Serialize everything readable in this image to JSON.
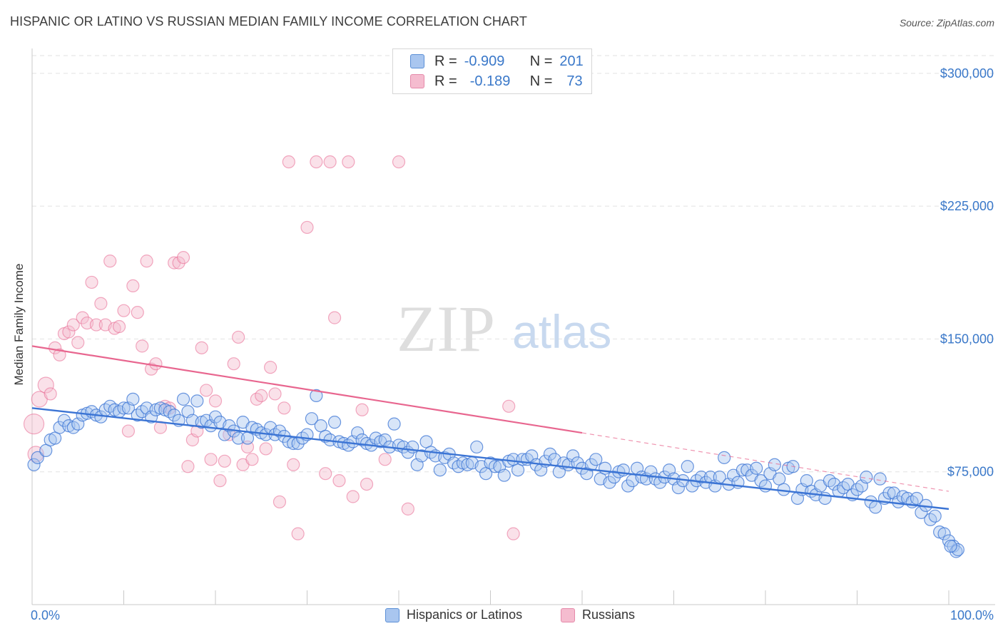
{
  "title": "HISPANIC OR LATINO VS RUSSIAN MEDIAN FAMILY INCOME CORRELATION CHART",
  "source": "Source: ZipAtlas.com",
  "watermark": {
    "zip": "ZIP",
    "atlas": "atlas"
  },
  "legend": {
    "rows": [
      {
        "r_label": "R =",
        "r_value": "-0.909",
        "n_label": "N =",
        "n_value": "201",
        "color": "#a9c6ef",
        "border": "#5b8fd6"
      },
      {
        "r_label": "R =",
        "r_value": "-0.189",
        "n_label": "N =",
        "n_value": "73",
        "color": "#f5bccf",
        "border": "#e58aaa"
      }
    ]
  },
  "bottom_legend": {
    "hispanic": "Hispanics or Latinos",
    "russian": "Russians"
  },
  "chart_data": {
    "type": "scatter",
    "xlabel": "",
    "ylabel": "Median Family Income",
    "xlim": [
      0,
      100
    ],
    "ylim": [
      0,
      310000
    ],
    "x_tick_labels": {
      "left": "0.0%",
      "right": "100.0%"
    },
    "y_ticks": [
      75000,
      150000,
      225000,
      300000
    ],
    "y_tick_labels": [
      "$75,000",
      "$150,000",
      "$225,000",
      "$300,000"
    ],
    "grid": true,
    "colors": {
      "hispanic_fill": "#a9c6ef",
      "hispanic_line": "#3b74d4",
      "russian_fill": "#f5bccf",
      "russian_line": "#e8668f",
      "axis_text": "#3a78c9"
    },
    "series": [
      {
        "name": "Hispanics or Latinos",
        "trend": {
          "x": [
            0,
            100
          ],
          "y": [
            111000,
            54000
          ]
        },
        "points": [
          [
            0.2,
            79000
          ],
          [
            0.6,
            83000
          ],
          [
            1.5,
            87000
          ],
          [
            2,
            93000
          ],
          [
            2.5,
            94000
          ],
          [
            3,
            100000
          ],
          [
            3.5,
            104000
          ],
          [
            4,
            101000
          ],
          [
            4.5,
            100000
          ],
          [
            5,
            102000
          ],
          [
            5.5,
            107000
          ],
          [
            6,
            108000
          ],
          [
            6.5,
            109000
          ],
          [
            7,
            107000
          ],
          [
            7.5,
            106000
          ],
          [
            8,
            110000
          ],
          [
            8.5,
            112000
          ],
          [
            9,
            110000
          ],
          [
            9.5,
            109000
          ],
          [
            10,
            111000
          ],
          [
            10.5,
            111000
          ],
          [
            11,
            116000
          ],
          [
            11.5,
            107000
          ],
          [
            12,
            109000
          ],
          [
            12.5,
            111000
          ],
          [
            13,
            106000
          ],
          [
            13.5,
            110000
          ],
          [
            14,
            111000
          ],
          [
            14.5,
            110000
          ],
          [
            15,
            109000
          ],
          [
            15.5,
            107000
          ],
          [
            16,
            104000
          ],
          [
            16.5,
            116000
          ],
          [
            17,
            109000
          ],
          [
            17.5,
            104000
          ],
          [
            18,
            115000
          ],
          [
            18.5,
            103000
          ],
          [
            19,
            104000
          ],
          [
            19.5,
            101000
          ],
          [
            20,
            106000
          ],
          [
            20.5,
            103000
          ],
          [
            21,
            96000
          ],
          [
            21.5,
            101000
          ],
          [
            22,
            98000
          ],
          [
            22.5,
            94000
          ],
          [
            23,
            103000
          ],
          [
            23.5,
            94000
          ],
          [
            24,
            100000
          ],
          [
            24.5,
            99000
          ],
          [
            25,
            97000
          ],
          [
            25.5,
            96000
          ],
          [
            26,
            100000
          ],
          [
            26.5,
            96000
          ],
          [
            27,
            98000
          ],
          [
            27.5,
            95000
          ],
          [
            28,
            92000
          ],
          [
            28.5,
            91000
          ],
          [
            29,
            91000
          ],
          [
            29.5,
            94000
          ],
          [
            30,
            96000
          ],
          [
            30.5,
            105000
          ],
          [
            31,
            118000
          ],
          [
            31.5,
            101000
          ],
          [
            32,
            95000
          ],
          [
            32.5,
            93000
          ],
          [
            33,
            103000
          ],
          [
            33.5,
            92000
          ],
          [
            34,
            91000
          ],
          [
            34.5,
            90000
          ],
          [
            35,
            92000
          ],
          [
            35.5,
            97000
          ],
          [
            36,
            93000
          ],
          [
            36.5,
            91000
          ],
          [
            37,
            90000
          ],
          [
            37.5,
            94000
          ],
          [
            38,
            92000
          ],
          [
            38.5,
            93000
          ],
          [
            39,
            89000
          ],
          [
            39.5,
            102000
          ],
          [
            40,
            90000
          ],
          [
            40.5,
            89000
          ],
          [
            41,
            86000
          ],
          [
            41.5,
            89000
          ],
          [
            42,
            79000
          ],
          [
            42.5,
            84000
          ],
          [
            43,
            92000
          ],
          [
            43.5,
            86000
          ],
          [
            44,
            84000
          ],
          [
            44.5,
            76000
          ],
          [
            45,
            83000
          ],
          [
            45.5,
            85000
          ],
          [
            46,
            80000
          ],
          [
            46.5,
            78000
          ],
          [
            47,
            80000
          ],
          [
            47.5,
            79000
          ],
          [
            48,
            80000
          ],
          [
            48.5,
            89000
          ],
          [
            49,
            78000
          ],
          [
            49.5,
            74000
          ],
          [
            50,
            80000
          ],
          [
            50.5,
            78000
          ],
          [
            51,
            78000
          ],
          [
            51.5,
            73000
          ],
          [
            52,
            81000
          ],
          [
            52.5,
            82000
          ],
          [
            53,
            76000
          ],
          [
            53.5,
            82000
          ],
          [
            54,
            82000
          ],
          [
            54.5,
            84000
          ],
          [
            55,
            79000
          ],
          [
            55.5,
            76000
          ],
          [
            56,
            81000
          ],
          [
            56.5,
            85000
          ],
          [
            57,
            82000
          ],
          [
            57.5,
            75000
          ],
          [
            58,
            80000
          ],
          [
            58.5,
            79000
          ],
          [
            59,
            84000
          ],
          [
            59.5,
            80000
          ],
          [
            60,
            77000
          ],
          [
            60.5,
            74000
          ],
          [
            61,
            79000
          ],
          [
            61.5,
            82000
          ],
          [
            62,
            71000
          ],
          [
            62.5,
            77000
          ],
          [
            63,
            69000
          ],
          [
            63.5,
            72000
          ],
          [
            64,
            75000
          ],
          [
            64.5,
            76000
          ],
          [
            65,
            67000
          ],
          [
            65.5,
            70000
          ],
          [
            66,
            77000
          ],
          [
            66.5,
            72000
          ],
          [
            67,
            71000
          ],
          [
            67.5,
            75000
          ],
          [
            68,
            71000
          ],
          [
            68.5,
            69000
          ],
          [
            69,
            72000
          ],
          [
            69.5,
            76000
          ],
          [
            70,
            71000
          ],
          [
            70.5,
            66000
          ],
          [
            71,
            70000
          ],
          [
            71.5,
            78000
          ],
          [
            72,
            67000
          ],
          [
            72.5,
            70000
          ],
          [
            73,
            72000
          ],
          [
            73.5,
            69000
          ],
          [
            74,
            72000
          ],
          [
            74.5,
            67000
          ],
          [
            75,
            72000
          ],
          [
            75.5,
            83000
          ],
          [
            76,
            68000
          ],
          [
            76.5,
            73000
          ],
          [
            77,
            69000
          ],
          [
            77.5,
            76000
          ],
          [
            78,
            76000
          ],
          [
            78.5,
            73000
          ],
          [
            79,
            77000
          ],
          [
            79.5,
            70000
          ],
          [
            80,
            67000
          ],
          [
            80.5,
            74000
          ],
          [
            81,
            79000
          ],
          [
            81.5,
            71000
          ],
          [
            82,
            65000
          ],
          [
            82.5,
            77000
          ],
          [
            83,
            78000
          ],
          [
            83.5,
            60000
          ],
          [
            84,
            65000
          ],
          [
            84.5,
            70000
          ],
          [
            85,
            64000
          ],
          [
            85.5,
            62000
          ],
          [
            86,
            67000
          ],
          [
            86.5,
            60000
          ],
          [
            87,
            70000
          ],
          [
            87.5,
            68000
          ],
          [
            88,
            64000
          ],
          [
            88.5,
            66000
          ],
          [
            89,
            68000
          ],
          [
            89.5,
            62000
          ],
          [
            90,
            65000
          ],
          [
            90.5,
            67000
          ],
          [
            91,
            72000
          ],
          [
            91.5,
            58000
          ],
          [
            92,
            55000
          ],
          [
            92.5,
            71000
          ],
          [
            93,
            60000
          ],
          [
            93.5,
            63000
          ],
          [
            94,
            63000
          ],
          [
            94.5,
            58000
          ],
          [
            95,
            61000
          ],
          [
            95.5,
            60000
          ],
          [
            96,
            58000
          ],
          [
            96.5,
            60000
          ],
          [
            97,
            52000
          ],
          [
            97.5,
            56000
          ],
          [
            98,
            48000
          ],
          [
            98.5,
            50000
          ],
          [
            99,
            41000
          ],
          [
            99.5,
            40000
          ],
          [
            100,
            36000
          ],
          [
            100.5,
            33000
          ],
          [
            100.8,
            30000
          ],
          [
            101,
            31000
          ],
          [
            100.2,
            33000
          ]
        ]
      },
      {
        "name": "Russians",
        "trend": {
          "x": [
            0,
            60
          ],
          "y": [
            146000,
            97000
          ]
        },
        "trend_dashed": {
          "x": [
            60,
            100
          ],
          "y": [
            97000,
            64000
          ]
        },
        "points": [
          [
            0.2,
            102000
          ],
          [
            0.4,
            85000
          ],
          [
            0.8,
            116000
          ],
          [
            1.5,
            124000
          ],
          [
            2,
            119000
          ],
          [
            2.5,
            145000
          ],
          [
            3,
            141000
          ],
          [
            3.5,
            153000
          ],
          [
            4,
            154000
          ],
          [
            4.5,
            158000
          ],
          [
            5,
            148000
          ],
          [
            5.5,
            162000
          ],
          [
            6,
            159000
          ],
          [
            6.5,
            182000
          ],
          [
            7,
            158000
          ],
          [
            7.5,
            170000
          ],
          [
            8,
            158000
          ],
          [
            8.5,
            194000
          ],
          [
            9,
            156000
          ],
          [
            9.5,
            157000
          ],
          [
            10,
            166000
          ],
          [
            10.5,
            98000
          ],
          [
            11,
            180000
          ],
          [
            11.5,
            165000
          ],
          [
            12,
            146000
          ],
          [
            12.5,
            194000
          ],
          [
            13,
            133000
          ],
          [
            13.5,
            136000
          ],
          [
            14,
            100000
          ],
          [
            14.5,
            112000
          ],
          [
            15,
            111000
          ],
          [
            15.5,
            193000
          ],
          [
            16,
            193000
          ],
          [
            16.5,
            196000
          ],
          [
            17,
            78000
          ],
          [
            17.5,
            93000
          ],
          [
            18,
            98000
          ],
          [
            18.5,
            145000
          ],
          [
            19,
            121000
          ],
          [
            19.5,
            82000
          ],
          [
            20,
            115000
          ],
          [
            20.5,
            70000
          ],
          [
            21,
            81000
          ],
          [
            21.5,
            96000
          ],
          [
            22,
            136000
          ],
          [
            22.5,
            151000
          ],
          [
            23,
            79000
          ],
          [
            23.5,
            89000
          ],
          [
            24,
            82000
          ],
          [
            24.5,
            116000
          ],
          [
            25,
            118000
          ],
          [
            25.5,
            88000
          ],
          [
            26,
            134000
          ],
          [
            26.5,
            119000
          ],
          [
            27,
            58000
          ],
          [
            27.5,
            111000
          ],
          [
            28,
            250000
          ],
          [
            28.5,
            79000
          ],
          [
            29,
            40000
          ],
          [
            30,
            213000
          ],
          [
            31,
            250000
          ],
          [
            32,
            74000
          ],
          [
            32.5,
            250000
          ],
          [
            33,
            162000
          ],
          [
            33.5,
            70000
          ],
          [
            34.5,
            250000
          ],
          [
            35,
            61000
          ],
          [
            36,
            110000
          ],
          [
            36.5,
            68000
          ],
          [
            38.5,
            82000
          ],
          [
            40,
            250000
          ],
          [
            41,
            54000
          ],
          [
            52,
            112000
          ],
          [
            52.5,
            40000
          ]
        ]
      }
    ]
  }
}
